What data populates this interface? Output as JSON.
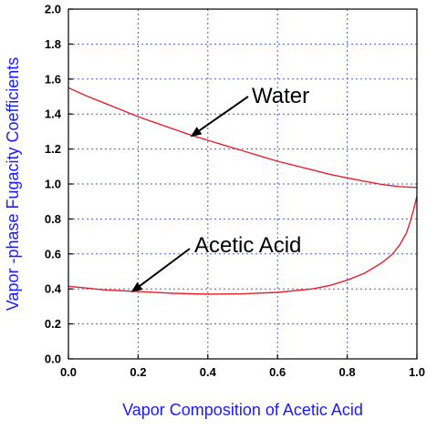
{
  "chart_data": {
    "type": "line",
    "title": "",
    "xlabel": "Vapor Composition of Acetic Acid",
    "ylabel": "Vapor -phase Fugacity Coefficients",
    "xlim": [
      0,
      1
    ],
    "ylim": [
      0,
      2
    ],
    "xticks": [
      0,
      0.2,
      0.4,
      0.6,
      0.8,
      1.0
    ],
    "xtick_labels": [
      "0.0",
      "0.2",
      "0.4",
      "0.6",
      "0.8",
      "1.0"
    ],
    "yticks": [
      0,
      0.2,
      0.4,
      0.6,
      0.8,
      1.0,
      1.2,
      1.4,
      1.6,
      1.8,
      2.0
    ],
    "ytick_labels": [
      "0.0",
      "0.2",
      "0.4",
      "0.6",
      "0.8",
      "1.0",
      "1.2",
      "1.4",
      "1.6",
      "1.8",
      "2.0"
    ],
    "grid": true,
    "legend": "none",
    "series": [
      {
        "name": "Water",
        "color": "#e8202a",
        "x": [
          0,
          0.05,
          0.1,
          0.15,
          0.2,
          0.25,
          0.3,
          0.35,
          0.4,
          0.45,
          0.5,
          0.55,
          0.6,
          0.65,
          0.7,
          0.75,
          0.8,
          0.85,
          0.9,
          0.95,
          1.0
        ],
        "y": [
          1.55,
          1.505,
          1.465,
          1.425,
          1.385,
          1.35,
          1.315,
          1.28,
          1.25,
          1.22,
          1.19,
          1.16,
          1.13,
          1.105,
          1.08,
          1.055,
          1.035,
          1.015,
          0.997,
          0.985,
          0.98
        ]
      },
      {
        "name": "Acetic Acid",
        "color": "#e8202a",
        "x": [
          0,
          0.05,
          0.1,
          0.2,
          0.3,
          0.4,
          0.5,
          0.6,
          0.7,
          0.75,
          0.8,
          0.85,
          0.9,
          0.93,
          0.95,
          0.97,
          0.98,
          0.99,
          1.0
        ],
        "y": [
          0.415,
          0.405,
          0.395,
          0.385,
          0.375,
          0.37,
          0.372,
          0.38,
          0.4,
          0.42,
          0.45,
          0.49,
          0.55,
          0.6,
          0.65,
          0.72,
          0.78,
          0.85,
          0.93
        ]
      }
    ],
    "annotations": [
      {
        "text": "Water",
        "target": [
          0.35,
          1.27
        ]
      },
      {
        "text": "Acetic Acid",
        "target": [
          0.18,
          0.38
        ]
      }
    ]
  }
}
